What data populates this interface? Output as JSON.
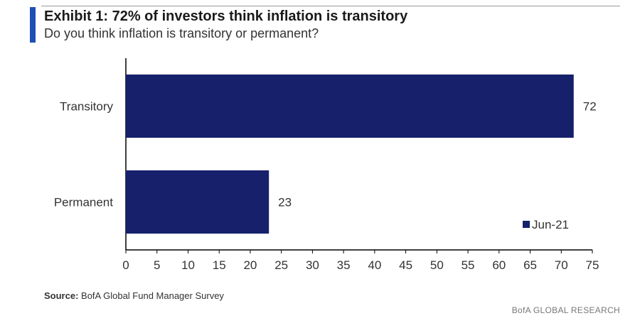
{
  "header": {
    "title": "Exhibit 1: 72% of investors think inflation is transitory",
    "subtitle": "Do you think inflation is transitory or permanent?"
  },
  "footer": {
    "source_label": "Source:",
    "source_text": "BofA Global Fund Manager Survey",
    "brand": "BofA GLOBAL RESEARCH"
  },
  "colors": {
    "bar": "#16206b",
    "accent": "#1f4eb4",
    "axis": "#000000",
    "text": "#333333"
  },
  "chart_data": {
    "type": "bar",
    "orientation": "horizontal",
    "categories": [
      "Transitory",
      "Permanent"
    ],
    "series": [
      {
        "name": "Jun-21",
        "values": [
          72,
          23
        ]
      }
    ],
    "data_labels": [
      "72",
      "23"
    ],
    "xlim": [
      0,
      75
    ],
    "xticks": [
      0,
      5,
      10,
      15,
      20,
      25,
      30,
      35,
      40,
      45,
      50,
      55,
      60,
      65,
      70,
      75
    ],
    "xlabel": "",
    "ylabel": "",
    "grid": false,
    "legend_position": "bottom-right"
  }
}
